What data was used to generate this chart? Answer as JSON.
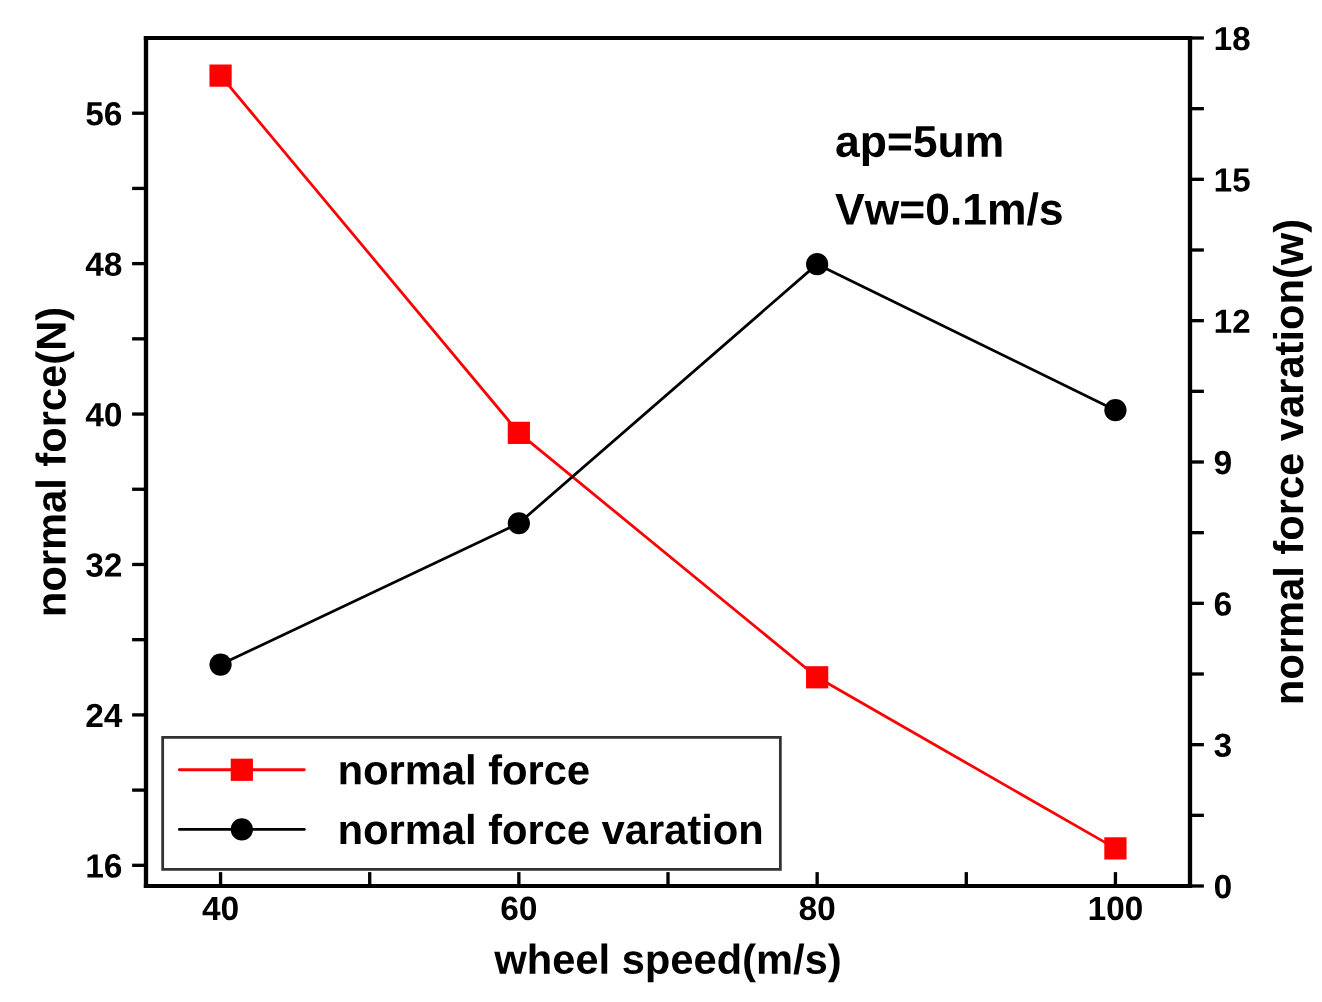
{
  "chart_data": {
    "type": "line",
    "x": [
      40,
      60,
      80,
      100
    ],
    "series": [
      {
        "name": "normal force",
        "color": "#ff0000",
        "values": [
          58.0,
          39.0,
          26.0,
          16.9
        ],
        "marker": "square"
      },
      {
        "name": "normal force varation",
        "color": "#000000",
        "values": [
          4.7,
          7.7,
          13.2,
          10.1
        ],
        "marker": "circle",
        "axis": "y2"
      }
    ],
    "xlabel": "wheel speed(m/s)",
    "ylabel": "normal force(N)",
    "y2label": "normal force varation(w)",
    "xlim": [
      35,
      105
    ],
    "xticks": [
      40,
      {
        "value": 50,
        "label": null
      },
      60,
      {
        "value": 70,
        "label": null
      },
      80,
      {
        "value": 90,
        "label": null
      },
      100
    ],
    "ylim": [
      14.9,
      60
    ],
    "yticks": [
      16,
      {
        "value": 20,
        "label": null
      },
      24,
      {
        "value": 28,
        "label": null
      },
      32,
      {
        "value": 36,
        "label": null
      },
      40,
      {
        "value": 44,
        "label": null
      },
      48,
      {
        "value": 52,
        "label": null
      },
      56
    ],
    "y2lim": [
      0,
      18
    ],
    "y2ticks": [
      0,
      {
        "value": 1.5,
        "label": null
      },
      3,
      {
        "value": 4.5,
        "label": null
      },
      6,
      {
        "value": 7.5,
        "label": null
      },
      9,
      {
        "value": 10.5,
        "label": null
      },
      12,
      {
        "value": 13.5,
        "label": null
      },
      15,
      {
        "value": 16.5,
        "label": null
      },
      18
    ],
    "annotations": [
      "ap=5um",
      "Vw=0.1m/s"
    ],
    "legend": "bottom left",
    "grid": false,
    "line_style": "solid"
  }
}
